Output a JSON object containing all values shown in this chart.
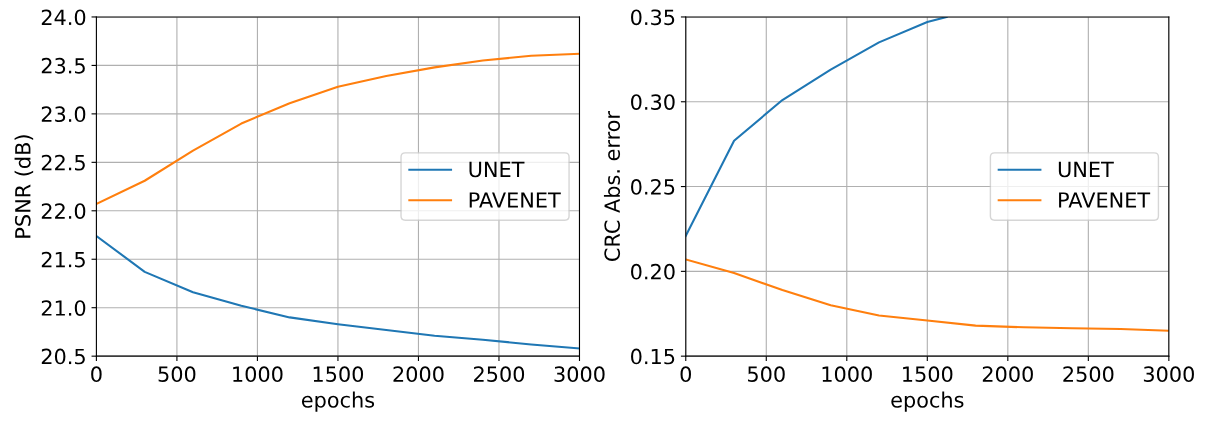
{
  "chart_data": [
    {
      "type": "line",
      "xlabel": "epochs",
      "ylabel": "PSNR (dB)",
      "x": [
        0,
        300,
        600,
        900,
        1200,
        1500,
        1800,
        2100,
        2400,
        2700,
        3000
      ],
      "xlim": [
        0,
        3000
      ],
      "xticks": [
        0,
        500,
        1000,
        1500,
        2000,
        2500,
        3000
      ],
      "ylim": [
        20.5,
        24.0
      ],
      "yticks": [
        {
          "value": 20.5,
          "label": "20.5"
        },
        {
          "value": 21.0,
          "label": "21.0"
        },
        {
          "value": 21.5,
          "label": "21.5"
        },
        {
          "value": 22.0,
          "label": "22.0"
        },
        {
          "value": 22.5,
          "label": "22.5"
        },
        {
          "value": 23.0,
          "label": "23.0"
        },
        {
          "value": 23.5,
          "label": "23.5"
        },
        {
          "value": 24.0,
          "label": "24.0"
        }
      ],
      "grid": true,
      "legend": "right",
      "series": [
        {
          "name": "UNET",
          "color": "#1f77b4",
          "values": [
            21.74,
            21.37,
            21.16,
            21.02,
            20.9,
            20.83,
            20.77,
            20.71,
            20.67,
            20.62,
            20.58
          ]
        },
        {
          "name": "PAVENET",
          "color": "#ff7f0e",
          "values": [
            22.07,
            22.31,
            22.62,
            22.9,
            23.11,
            23.28,
            23.39,
            23.48,
            23.55,
            23.6,
            23.62
          ]
        }
      ]
    },
    {
      "type": "line",
      "xlabel": "epochs",
      "ylabel": "CRC Abs. error",
      "x": [
        0,
        300,
        600,
        900,
        1200,
        1500,
        1800,
        2100,
        2400,
        2700,
        3000
      ],
      "xlim": [
        0,
        3000
      ],
      "xticks": [
        0,
        500,
        1000,
        1500,
        2000,
        2500,
        3000
      ],
      "ylim": [
        0.15,
        0.35
      ],
      "yticks": [
        {
          "value": 0.15,
          "label": "0.15"
        },
        {
          "value": 0.2,
          "label": "0.20"
        },
        {
          "value": 0.25,
          "label": "0.25"
        },
        {
          "value": 0.3,
          "label": "0.30"
        },
        {
          "value": 0.35,
          "label": "0.35"
        }
      ],
      "grid": true,
      "legend": "right",
      "series": [
        {
          "name": "UNET",
          "color": "#1f77b4",
          "x": [
            0,
            300,
            600,
            900,
            1200,
            1500,
            1620
          ],
          "values": [
            0.221,
            0.277,
            0.301,
            0.319,
            0.335,
            0.347,
            0.35
          ]
        },
        {
          "name": "PAVENET",
          "color": "#ff7f0e",
          "values": [
            0.207,
            0.199,
            0.189,
            0.18,
            0.174,
            0.171,
            0.168,
            0.167,
            0.1665,
            0.166,
            0.165
          ]
        }
      ]
    }
  ]
}
